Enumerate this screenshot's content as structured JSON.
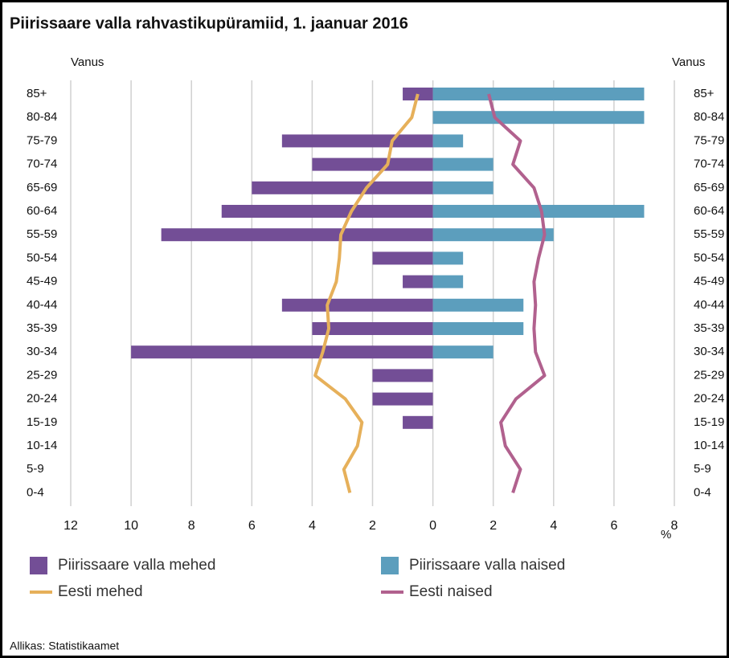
{
  "chart_data": {
    "type": "bar",
    "orientation": "horizontal",
    "title": "Piirissaare valla rahvastikupüramiid, 1. jaanuar 2016",
    "y_label": "Vanus",
    "x_label": "%",
    "source": "Allikas: Statistikaamet",
    "categories": [
      "85+",
      "80-84",
      "75-79",
      "70-74",
      "65-69",
      "60-64",
      "55-59",
      "50-54",
      "45-49",
      "40-44",
      "35-39",
      "30-34",
      "25-29",
      "20-24",
      "15-19",
      "10-14",
      "5-9",
      "0-4"
    ],
    "series": [
      {
        "name": "Piirissaare valla mehed",
        "type": "bar",
        "color": "#734e96",
        "values": [
          -1,
          0,
          -5,
          -4,
          -6,
          -7,
          -9,
          -2,
          -1,
          -5,
          -4,
          -10,
          -2,
          -2,
          -1,
          0,
          0,
          0
        ]
      },
      {
        "name": "Piirissaare valla naised",
        "type": "bar",
        "color": "#5c9ebd",
        "values": [
          7,
          7,
          1,
          2,
          2,
          7,
          4,
          1,
          1,
          3,
          3,
          2,
          0,
          0,
          0,
          0,
          0,
          0
        ]
      },
      {
        "name": "Eesti mehed",
        "type": "line",
        "color": "#e6b05a",
        "values": [
          -0.5,
          -0.7,
          -1.35,
          -1.5,
          -2.2,
          -2.7,
          -3.05,
          -3.1,
          -3.2,
          -3.5,
          -3.45,
          -3.65,
          -3.9,
          -2.9,
          -2.35,
          -2.5,
          -2.95,
          -2.75
        ]
      },
      {
        "name": "Eesti naised",
        "type": "line",
        "color": "#b1618e",
        "values": [
          1.85,
          2.05,
          2.9,
          2.65,
          3.35,
          3.6,
          3.7,
          3.5,
          3.35,
          3.4,
          3.35,
          3.4,
          3.7,
          2.75,
          2.25,
          2.4,
          2.9,
          2.65
        ]
      }
    ],
    "xlim": [
      -12,
      8
    ],
    "xticks": [
      {
        "value": -12,
        "label": "12"
      },
      {
        "value": -10,
        "label": "10"
      },
      {
        "value": -8,
        "label": "8"
      },
      {
        "value": -6,
        "label": "6"
      },
      {
        "value": -4,
        "label": "4"
      },
      {
        "value": -2,
        "label": "2"
      },
      0,
      2,
      4,
      6,
      8
    ],
    "grid": true
  }
}
